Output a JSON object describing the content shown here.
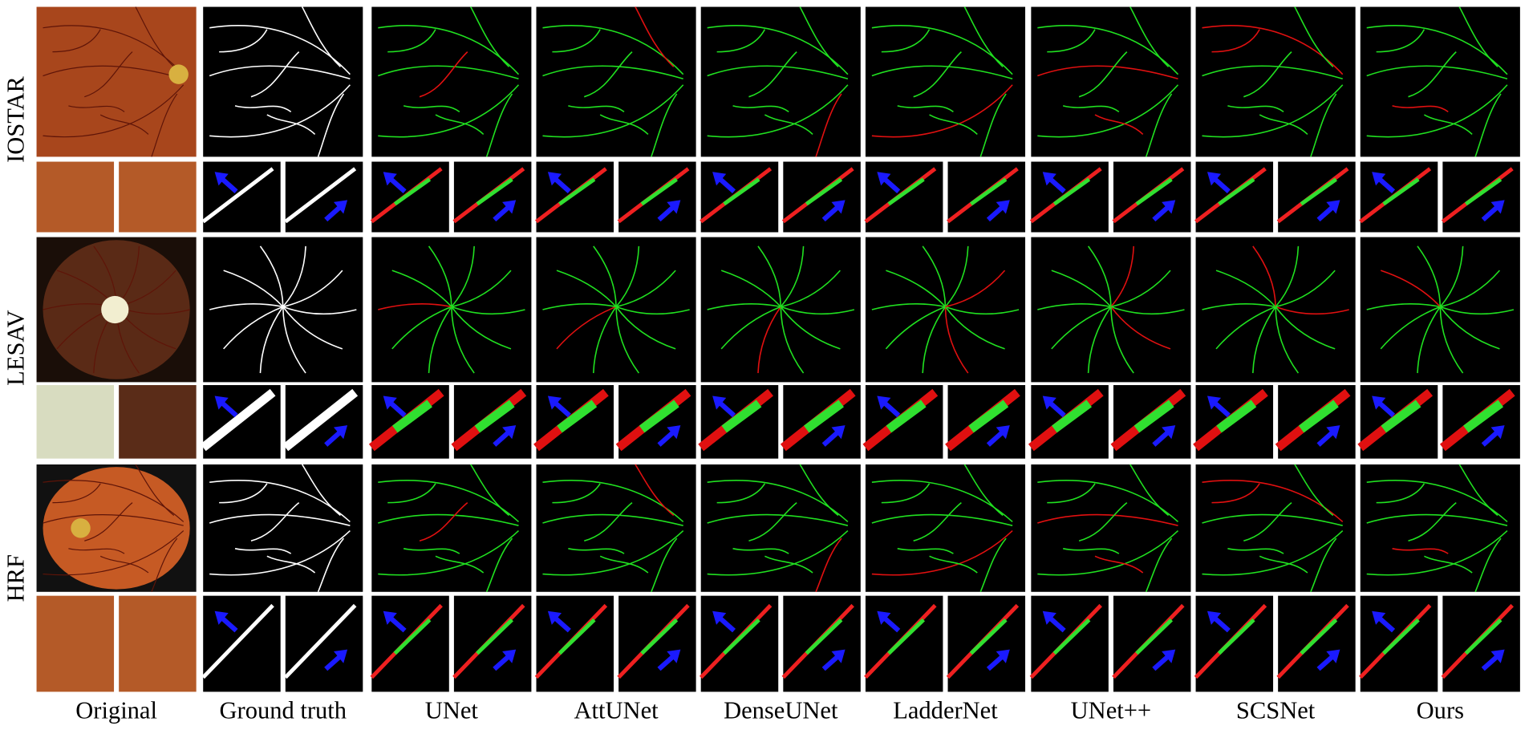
{
  "rows": [
    {
      "label": "IOSTAR"
    },
    {
      "label": "LESAV"
    },
    {
      "label": "HRF"
    }
  ],
  "columns": [
    "Original",
    "Ground truth",
    "UNet",
    "AttUNet",
    "DenseUNet",
    "LadderNet",
    "UNet++",
    "SCSNet",
    "Ours"
  ]
}
